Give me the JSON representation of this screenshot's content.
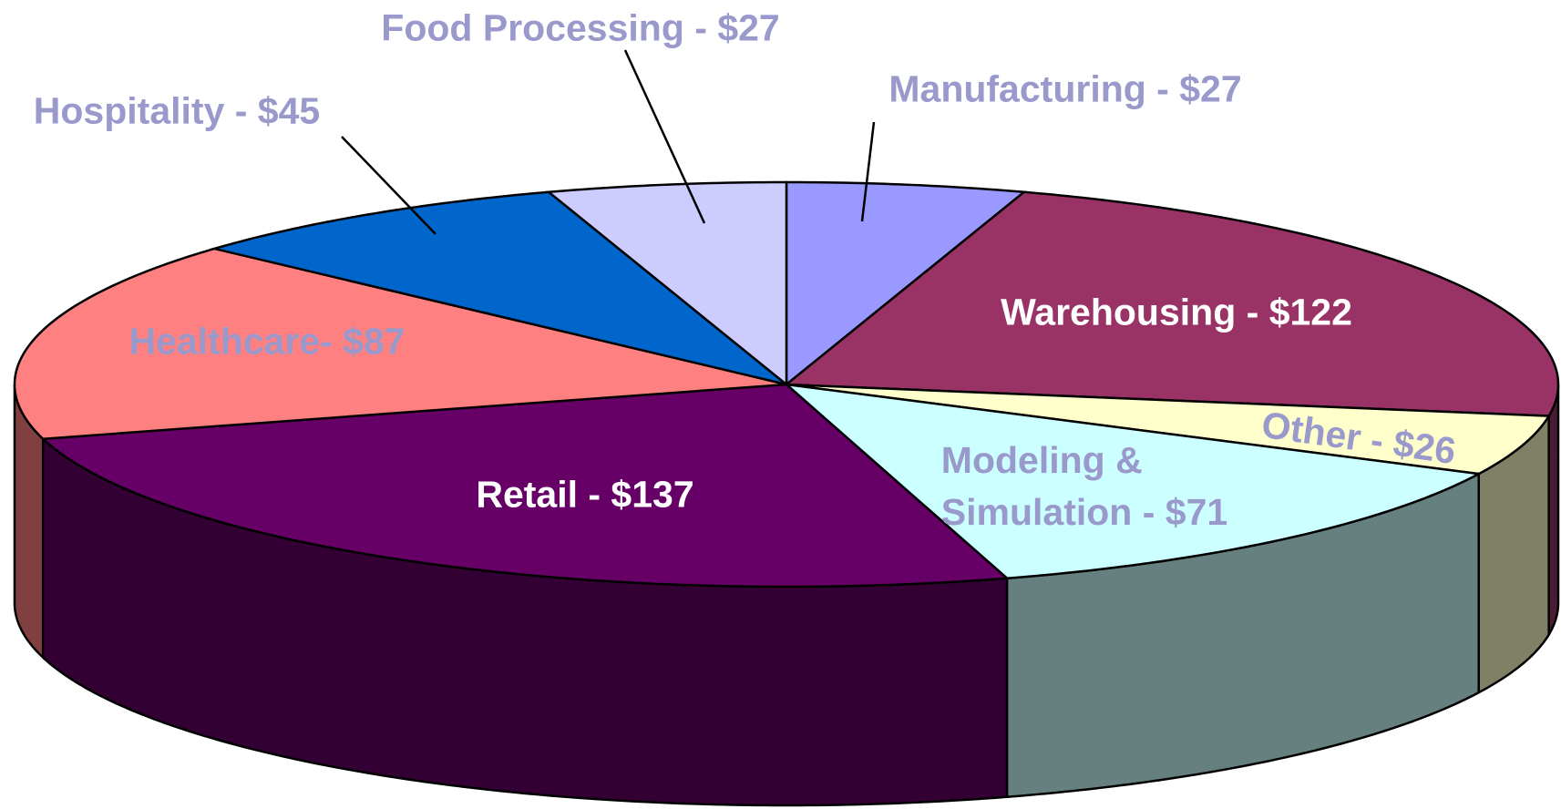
{
  "chart_data": {
    "type": "pie3d",
    "value_labels": [
      "Manufacturing - $27",
      "Warehousing - $122",
      "Other - $26",
      "Modeling &\nSimulation - $71",
      "Retail - $137",
      "Healthcare- $87",
      "Hospitality - $45",
      "Food Processing - $27"
    ],
    "values": [
      27,
      122,
      26,
      71,
      137,
      87,
      45,
      27
    ],
    "colors": [
      "#9999ff",
      "#993366",
      "#ffffcc",
      "#ccffff",
      "#660066",
      "#ff8080",
      "#0066cc",
      "#ccccff"
    ],
    "label_colors": [
      "#9999cc",
      "#ffffff",
      "#9999cc",
      "#9999cc",
      "#ffffff",
      "#9999cc",
      "#9999cc",
      "#9999cc"
    ]
  }
}
